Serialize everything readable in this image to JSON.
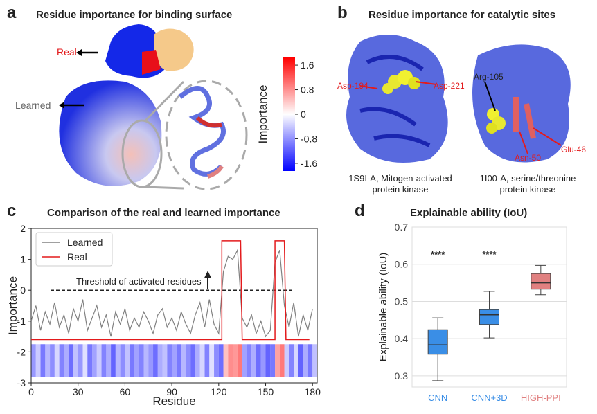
{
  "panel_a": {
    "letter": "a",
    "title": "Residue importance for binding surface",
    "real_label": "Real",
    "learned_label": "Learned",
    "colorbar": {
      "label": "Importance",
      "clim": [
        -1.85,
        1.85
      ],
      "ticks": [
        1.6,
        0.8,
        0,
        -0.8,
        -1.6
      ],
      "colors": [
        "#0000ff",
        "#ffffff",
        "#ff0000"
      ]
    }
  },
  "panel_b": {
    "letter": "b",
    "title": "Residue importance for catalytic sites",
    "left_labels": [
      "Asp-194",
      "Asp-221"
    ],
    "right_labels": [
      "Arg-105",
      "Asn-50",
      "Glu-46"
    ],
    "left_caption": [
      "1S9I-A, Mitogen-activated",
      "protein kinase"
    ],
    "right_caption": [
      "1I00-A, serine/threonine",
      "protein kinase"
    ]
  },
  "chart_data": [
    {
      "type": "line",
      "letter": "c",
      "title": "Comparison of the real and learned importance",
      "xlabel": "Residue",
      "ylabel": "Importance",
      "xlim": [
        0,
        183
      ],
      "ylim": [
        -3,
        2
      ],
      "xticks": [
        0,
        30,
        60,
        90,
        120,
        150,
        180
      ],
      "yticks": [
        -3,
        -2,
        -1,
        0,
        1,
        2
      ],
      "legend": "upper left",
      "threshold": {
        "value": 0,
        "label": "Threshold of activated residues"
      },
      "series": [
        {
          "name": "Learned",
          "color": "#808080",
          "x": [
            0,
            3,
            6,
            9,
            12,
            15,
            18,
            21,
            24,
            27,
            30,
            33,
            36,
            39,
            42,
            45,
            48,
            51,
            54,
            57,
            60,
            63,
            66,
            69,
            72,
            75,
            78,
            81,
            84,
            87,
            90,
            93,
            96,
            99,
            102,
            105,
            108,
            111,
            114,
            117,
            120,
            123,
            126,
            129,
            132,
            135,
            138,
            141,
            144,
            147,
            150,
            153,
            156,
            159,
            162,
            165,
            168,
            171,
            174,
            177,
            180
          ],
          "values": [
            -1.0,
            -0.5,
            -1.3,
            -0.7,
            -1.1,
            -0.4,
            -1.2,
            -0.8,
            -1.4,
            -0.6,
            -1.0,
            -0.3,
            -1.3,
            -0.9,
            -0.5,
            -1.2,
            -0.8,
            -1.5,
            -0.7,
            -1.1,
            -0.6,
            -1.3,
            -0.9,
            -1.2,
            -0.7,
            -1.0,
            -1.4,
            -0.8,
            -0.6,
            -1.2,
            -0.9,
            -1.3,
            -0.7,
            -1.1,
            -1.4,
            -0.8,
            -0.4,
            -1.2,
            -0.3,
            -1.1,
            -1.4,
            0.6,
            1.1,
            1.0,
            1.3,
            -0.9,
            -1.2,
            -0.8,
            -1.4,
            -1.0,
            -1.5,
            -1.3,
            0.9,
            1.3,
            -0.5,
            -1.2,
            -0.4,
            -1.5,
            -0.8,
            -1.3,
            -0.6
          ]
        },
        {
          "name": "Real",
          "color": "#e31a1c",
          "x": [
            0,
            122,
            122,
            134,
            135,
            156,
            156,
            162,
            163,
            178
          ],
          "values": [
            -1.6,
            -1.6,
            1.6,
            1.6,
            -1.6,
            -1.6,
            1.6,
            1.6,
            -1.6,
            -1.6
          ]
        }
      ]
    },
    {
      "type": "box",
      "letter": "d",
      "title": "Explainable ability (IoU)",
      "ylabel": "Explainable ability (IoU)",
      "ylim": [
        0.27,
        0.7
      ],
      "yticks": [
        0.3,
        0.4,
        0.5,
        0.6,
        0.7
      ],
      "grid": true,
      "categories": [
        "CNN",
        "CNN+3D",
        "HIGH-PPI"
      ],
      "colors": [
        "#3a8ee6",
        "#3a8ee6",
        "#e08080"
      ],
      "significance": [
        "****",
        "****",
        null
      ],
      "boxes": [
        {
          "whislo": 0.287,
          "q1": 0.358,
          "med": 0.383,
          "q3": 0.424,
          "whishi": 0.456
        },
        {
          "whislo": 0.402,
          "q1": 0.438,
          "med": 0.464,
          "q3": 0.478,
          "whishi": 0.527
        },
        {
          "whislo": 0.518,
          "q1": 0.533,
          "med": 0.55,
          "q3": 0.575,
          "whishi": 0.597
        }
      ]
    }
  ]
}
